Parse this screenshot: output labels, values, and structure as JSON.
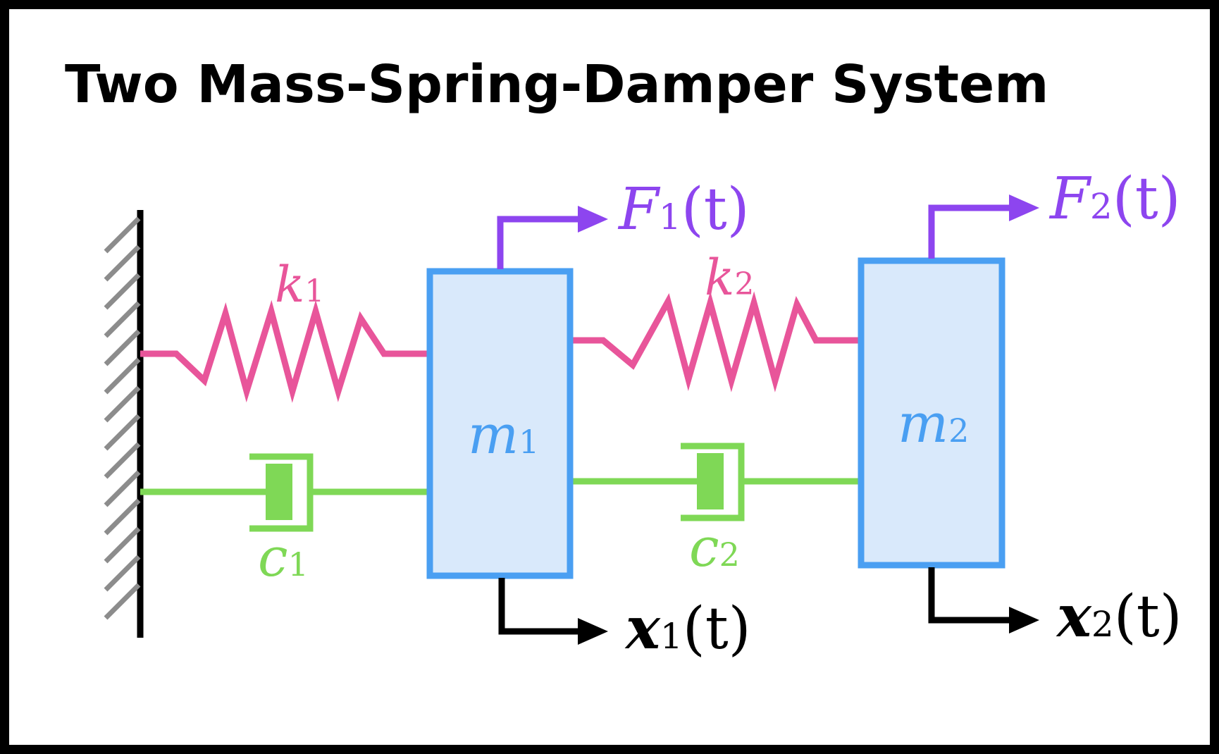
{
  "title": "Two Mass-Spring-Damper System",
  "colors": {
    "spring": "#e8559a",
    "damper": "#7fd856",
    "mass_border": "#4a9ff2",
    "mass_fill": "#d9e9fb",
    "force": "#8d45ef",
    "displacement": "#000000",
    "wall_hatch": "#8c8c8c"
  },
  "labels": {
    "k1": {
      "sym": "k",
      "sub": "1"
    },
    "k2": {
      "sym": "k",
      "sub": "2"
    },
    "c1": {
      "sym": "c",
      "sub": "1"
    },
    "c2": {
      "sym": "c",
      "sub": "2"
    },
    "m1": {
      "sym": "m",
      "sub": "1"
    },
    "m2": {
      "sym": "m",
      "sub": "2"
    },
    "F1": {
      "sym": "F",
      "sub": "1",
      "arg": "(t)"
    },
    "F2": {
      "sym": "F",
      "sub": "2",
      "arg": "(t)"
    },
    "x1": {
      "sym": "x",
      "sub": "1",
      "arg": "(t)"
    },
    "x2": {
      "sym": "x",
      "sub": "2",
      "arg": "(t)"
    }
  }
}
